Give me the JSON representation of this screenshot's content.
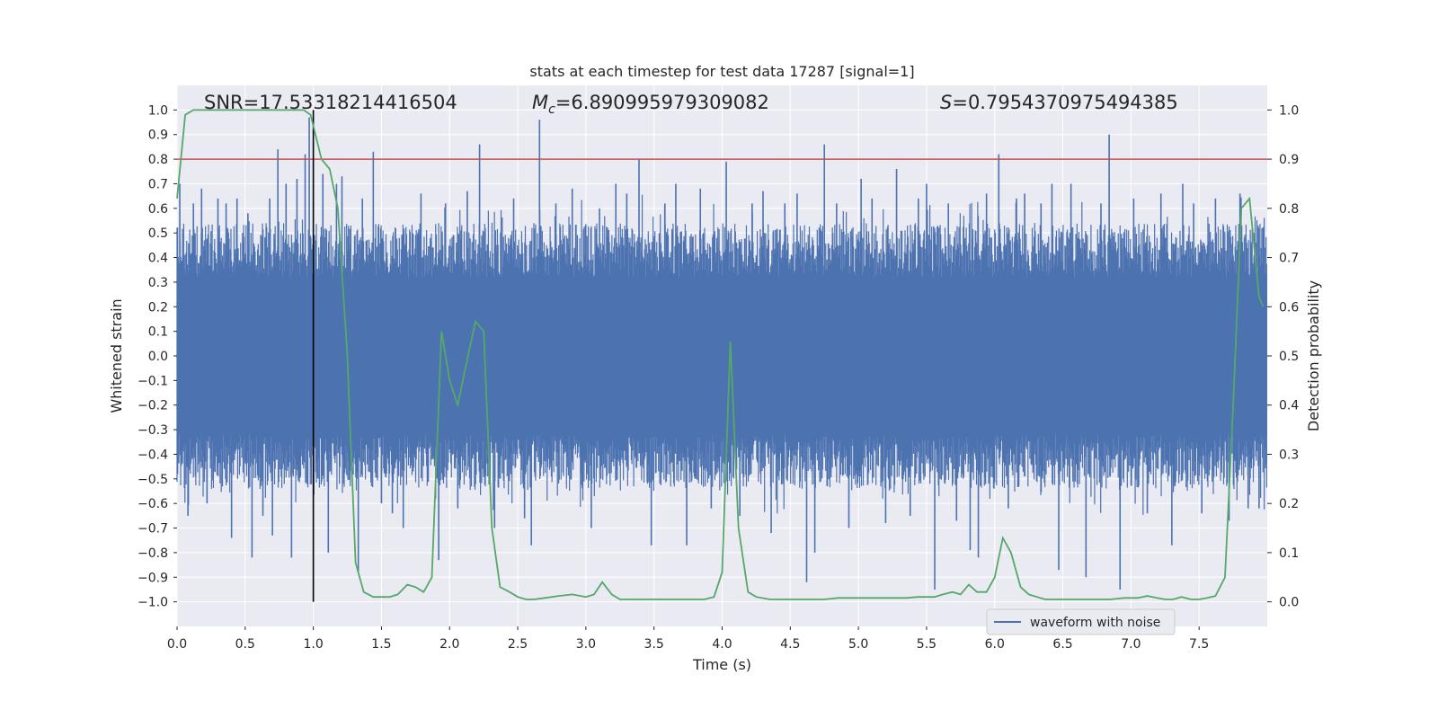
{
  "chart_data": {
    "type": "line",
    "title": "stats at each timestep for test data 17287 [signal=1]",
    "xlabel": "Time (s)",
    "ylabel": "Whitened strain",
    "y2label": "Detection probability",
    "xlim": [
      0.0,
      8.0
    ],
    "ylim": [
      -1.1,
      1.1
    ],
    "y2lim": [
      -0.05,
      1.05
    ],
    "xticks": [
      "0.0",
      "0.5",
      "1.0",
      "1.5",
      "2.0",
      "2.5",
      "3.0",
      "3.5",
      "4.0",
      "4.5",
      "5.0",
      "5.5",
      "6.0",
      "6.5",
      "7.0",
      "7.5"
    ],
    "yticks": [
      "1.0",
      "0.9",
      "0.8",
      "0.7",
      "0.6",
      "0.5",
      "0.4",
      "0.3",
      "0.2",
      "0.1",
      "0.0",
      "−0.1",
      "−0.2",
      "−0.3",
      "−0.4",
      "−0.5",
      "−0.6",
      "−0.7",
      "−0.8",
      "−0.9",
      "−1.0"
    ],
    "y2ticks": [
      "1.0",
      "0.9",
      "0.8",
      "0.7",
      "0.6",
      "0.5",
      "0.4",
      "0.3",
      "0.2",
      "0.1",
      "0.0"
    ],
    "annotations": {
      "snr": "SNR=17.53318214416504",
      "mc_symbol": "M",
      "mc_sub": "c",
      "mc_value": "=6.890995979309082",
      "s_symbol": "S",
      "s_value": "=0.7954370975494385"
    },
    "threshold_y2": 0.9,
    "merger_time": 1.0,
    "merger_line_ylim": [
      -1.0,
      1.0
    ],
    "legend": {
      "label": "waveform with noise",
      "location": "lower-right"
    },
    "waveform_spikes": [
      {
        "t": 0.02,
        "v": 0.7
      },
      {
        "t": 0.08,
        "v": -0.65
      },
      {
        "t": 0.12,
        "v": 0.62
      },
      {
        "t": 0.18,
        "v": 0.68
      },
      {
        "t": 0.22,
        "v": -0.6
      },
      {
        "t": 0.3,
        "v": 0.64
      },
      {
        "t": 0.36,
        "v": 0.62
      },
      {
        "t": 0.4,
        "v": -0.74
      },
      {
        "t": 0.44,
        "v": 0.64
      },
      {
        "t": 0.52,
        "v": 0.58
      },
      {
        "t": 0.55,
        "v": -0.82
      },
      {
        "t": 0.63,
        "v": -0.65
      },
      {
        "t": 0.68,
        "v": 0.64
      },
      {
        "t": 0.7,
        "v": -0.73
      },
      {
        "t": 0.74,
        "v": 0.84
      },
      {
        "t": 0.8,
        "v": 0.7
      },
      {
        "t": 0.84,
        "v": -0.82
      },
      {
        "t": 0.88,
        "v": 0.72
      },
      {
        "t": 0.94,
        "v": 0.82
      },
      {
        "t": 0.97,
        "v": 0.97
      },
      {
        "t": 1.07,
        "v": 0.74
      },
      {
        "t": 1.11,
        "v": -0.8
      },
      {
        "t": 1.17,
        "v": 0.7
      },
      {
        "t": 1.21,
        "v": 0.73
      },
      {
        "t": 1.33,
        "v": -0.88
      },
      {
        "t": 1.36,
        "v": 0.64
      },
      {
        "t": 1.44,
        "v": 0.83
      },
      {
        "t": 1.5,
        "v": -0.6
      },
      {
        "t": 1.58,
        "v": -0.64
      },
      {
        "t": 1.66,
        "v": -0.7
      },
      {
        "t": 1.79,
        "v": 0.66
      },
      {
        "t": 1.92,
        "v": -0.83
      },
      {
        "t": 1.97,
        "v": 0.62
      },
      {
        "t": 2.06,
        "v": -0.62
      },
      {
        "t": 2.13,
        "v": 0.67
      },
      {
        "t": 2.22,
        "v": 0.86
      },
      {
        "t": 2.33,
        "v": -0.7
      },
      {
        "t": 2.47,
        "v": 0.64
      },
      {
        "t": 2.55,
        "v": -0.66
      },
      {
        "t": 2.6,
        "v": -0.77
      },
      {
        "t": 2.66,
        "v": 0.96
      },
      {
        "t": 2.78,
        "v": 0.62
      },
      {
        "t": 2.9,
        "v": 0.68
      },
      {
        "t": 3.04,
        "v": -0.7
      },
      {
        "t": 3.1,
        "v": 0.6
      },
      {
        "t": 3.22,
        "v": 0.7
      },
      {
        "t": 3.3,
        "v": 0.66
      },
      {
        "t": 3.39,
        "v": 0.8
      },
      {
        "t": 3.48,
        "v": -0.77
      },
      {
        "t": 3.58,
        "v": 0.62
      },
      {
        "t": 3.66,
        "v": 0.7
      },
      {
        "t": 3.74,
        "v": -0.77
      },
      {
        "t": 3.84,
        "v": 0.68
      },
      {
        "t": 3.92,
        "v": -0.62
      },
      {
        "t": 4.03,
        "v": 0.79
      },
      {
        "t": 4.13,
        "v": -0.65
      },
      {
        "t": 4.22,
        "v": 0.62
      },
      {
        "t": 4.3,
        "v": 0.67
      },
      {
        "t": 4.36,
        "v": -0.72
      },
      {
        "t": 4.46,
        "v": 0.62
      },
      {
        "t": 4.55,
        "v": 0.66
      },
      {
        "t": 4.62,
        "v": -0.92
      },
      {
        "t": 4.68,
        "v": -0.8
      },
      {
        "t": 4.75,
        "v": 0.86
      },
      {
        "t": 4.84,
        "v": 0.62
      },
      {
        "t": 4.93,
        "v": -0.7
      },
      {
        "t": 5.02,
        "v": 0.72
      },
      {
        "t": 5.1,
        "v": 0.64
      },
      {
        "t": 5.2,
        "v": -0.68
      },
      {
        "t": 5.28,
        "v": 0.76
      },
      {
        "t": 5.38,
        "v": -0.65
      },
      {
        "t": 5.44,
        "v": 0.64
      },
      {
        "t": 5.5,
        "v": 0.7
      },
      {
        "t": 5.56,
        "v": -0.95
      },
      {
        "t": 5.66,
        "v": 0.62
      },
      {
        "t": 5.72,
        "v": -0.67
      },
      {
        "t": 5.82,
        "v": -0.79
      },
      {
        "t": 5.88,
        "v": -0.82
      },
      {
        "t": 5.94,
        "v": 0.66
      },
      {
        "t": 6.03,
        "v": 0.82
      },
      {
        "t": 6.1,
        "v": -0.62
      },
      {
        "t": 6.16,
        "v": 0.64
      },
      {
        "t": 6.22,
        "v": 0.66
      },
      {
        "t": 6.34,
        "v": 0.62
      },
      {
        "t": 6.42,
        "v": 0.7
      },
      {
        "t": 6.47,
        "v": -0.87
      },
      {
        "t": 6.56,
        "v": 0.7
      },
      {
        "t": 6.67,
        "v": -0.9
      },
      {
        "t": 6.78,
        "v": 0.62
      },
      {
        "t": 6.84,
        "v": 0.9
      },
      {
        "t": 6.92,
        "v": -0.95
      },
      {
        "t": 7.02,
        "v": 0.64
      },
      {
        "t": 7.12,
        "v": -0.64
      },
      {
        "t": 7.22,
        "v": 0.66
      },
      {
        "t": 7.3,
        "v": -0.77
      },
      {
        "t": 7.38,
        "v": 0.7
      },
      {
        "t": 7.46,
        "v": 0.62
      },
      {
        "t": 7.52,
        "v": -0.64
      },
      {
        "t": 7.62,
        "v": 0.64
      },
      {
        "t": 7.72,
        "v": -0.67
      },
      {
        "t": 7.8,
        "v": 0.66
      },
      {
        "t": 7.86,
        "v": -0.62
      },
      {
        "t": 7.94,
        "v": -0.62
      }
    ],
    "detection_probability": {
      "t": [
        0.0,
        0.06,
        0.12,
        0.25,
        0.4,
        0.55,
        0.7,
        0.85,
        0.93,
        0.98,
        1.06,
        1.12,
        1.18,
        1.25,
        1.31,
        1.37,
        1.44,
        1.5,
        1.56,
        1.62,
        1.69,
        1.75,
        1.81,
        1.87,
        1.94,
        2.0,
        2.06,
        2.12,
        2.19,
        2.25,
        2.31,
        2.37,
        2.44,
        2.5,
        2.56,
        2.62,
        2.7,
        2.8,
        2.9,
        3.0,
        3.06,
        3.12,
        3.19,
        3.25,
        3.31,
        3.4,
        3.5,
        3.6,
        3.7,
        3.8,
        3.87,
        3.94,
        4.0,
        4.06,
        4.12,
        4.19,
        4.25,
        4.35,
        4.5,
        4.6,
        4.75,
        4.85,
        5.0,
        5.1,
        5.25,
        5.35,
        5.44,
        5.5,
        5.56,
        5.62,
        5.69,
        5.75,
        5.81,
        5.87,
        5.94,
        6.0,
        6.06,
        6.12,
        6.19,
        6.25,
        6.31,
        6.37,
        6.44,
        6.55,
        6.7,
        6.85,
        6.95,
        7.05,
        7.12,
        7.19,
        7.25,
        7.31,
        7.37,
        7.44,
        7.5,
        7.56,
        7.62,
        7.69,
        7.75,
        7.81,
        7.87,
        7.94,
        7.97
      ],
      "p": [
        0.82,
        0.99,
        1.0,
        1.0,
        1.0,
        1.0,
        1.0,
        1.0,
        1.0,
        0.99,
        0.9,
        0.88,
        0.8,
        0.5,
        0.08,
        0.02,
        0.01,
        0.01,
        0.01,
        0.015,
        0.035,
        0.03,
        0.02,
        0.05,
        0.55,
        0.45,
        0.4,
        0.48,
        0.57,
        0.55,
        0.15,
        0.03,
        0.02,
        0.01,
        0.005,
        0.005,
        0.008,
        0.012,
        0.015,
        0.01,
        0.015,
        0.04,
        0.015,
        0.005,
        0.005,
        0.005,
        0.005,
        0.005,
        0.005,
        0.005,
        0.005,
        0.01,
        0.06,
        0.53,
        0.15,
        0.02,
        0.01,
        0.005,
        0.005,
        0.005,
        0.005,
        0.008,
        0.008,
        0.008,
        0.008,
        0.008,
        0.01,
        0.01,
        0.01,
        0.015,
        0.02,
        0.015,
        0.035,
        0.02,
        0.02,
        0.05,
        0.13,
        0.1,
        0.03,
        0.015,
        0.01,
        0.005,
        0.005,
        0.005,
        0.005,
        0.005,
        0.008,
        0.008,
        0.012,
        0.008,
        0.005,
        0.005,
        0.01,
        0.005,
        0.005,
        0.008,
        0.012,
        0.05,
        0.4,
        0.8,
        0.82,
        0.62,
        0.6
      ]
    }
  }
}
